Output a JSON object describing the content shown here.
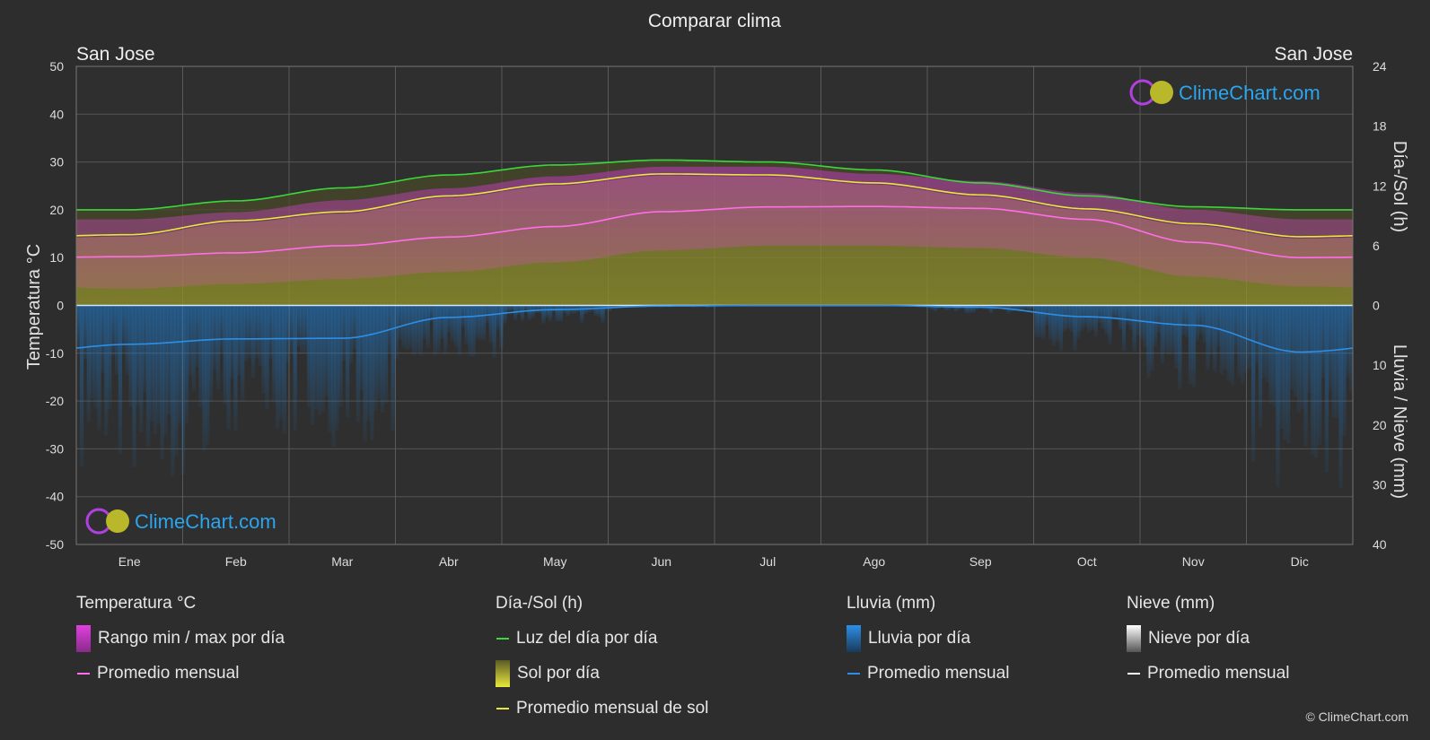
{
  "title": "Comparar clima",
  "location_left": "San Jose",
  "location_right": "San Jose",
  "watermark": "ClimeChart.com",
  "copyright": "© ClimeChart.com",
  "colors": {
    "background": "#2d2d2d",
    "temp_range": "#e040e0",
    "temp_avg": "#ff6ee8",
    "daylight": "#3ad83a",
    "sunshine_fill": "#9d9d28",
    "sunshine_avg": "#e8e83a",
    "rain": "#1e78c8",
    "rain_avg": "#2b8fe8",
    "snow": "#e0e0e0",
    "snow_avg": "#ffffff",
    "brand": "#2aa5ee"
  },
  "chart_data": {
    "type": "line",
    "categories": [
      "Ene",
      "Feb",
      "Mar",
      "Abr",
      "May",
      "Jun",
      "Jul",
      "Ago",
      "Sep",
      "Oct",
      "Nov",
      "Dic"
    ],
    "axes": {
      "left": {
        "label": "Temperatura °C",
        "range": [
          -50,
          50
        ],
        "ticks": [
          50,
          40,
          30,
          20,
          10,
          0,
          -10,
          -20,
          -30,
          -40,
          -50
        ]
      },
      "right_top": {
        "label": "Día-/Sol (h)",
        "range": [
          0,
          24
        ],
        "ticks": [
          24,
          18,
          12,
          6,
          0
        ]
      },
      "right_bottom": {
        "label": "Lluvia / Nieve (mm)",
        "range": [
          0,
          40
        ],
        "ticks": [
          10,
          20,
          30,
          40
        ]
      }
    },
    "grid": true,
    "series": [
      {
        "name": "Luz del día por día",
        "axis": "right_top",
        "values": [
          9.6,
          10.5,
          11.8,
          13.1,
          14.1,
          14.6,
          14.4,
          13.6,
          12.3,
          11.0,
          9.9,
          9.6
        ]
      },
      {
        "name": "Promedio mensual de sol",
        "axis": "right_top",
        "values": [
          7.1,
          8.5,
          9.4,
          11.0,
          12.2,
          13.2,
          13.1,
          12.3,
          11.1,
          9.7,
          8.2,
          6.9
        ]
      },
      {
        "name": "Promedio mensual",
        "metric": "temperature",
        "axis": "left",
        "values": [
          10.2,
          11.0,
          12.5,
          14.3,
          16.5,
          19.6,
          20.6,
          20.7,
          20.3,
          18.0,
          13.2,
          10.0
        ]
      },
      {
        "name": "Rango min / max por día",
        "metric": "temperature_max",
        "axis": "left",
        "values": [
          18.0,
          19.5,
          22.0,
          24.5,
          27.0,
          29.0,
          29.0,
          27.5,
          26.0,
          23.5,
          20.0,
          18.0
        ]
      },
      {
        "name": "Rango min / max por día",
        "metric": "temperature_min",
        "axis": "left",
        "values": [
          3.5,
          4.5,
          5.5,
          7.0,
          9.0,
          11.5,
          12.5,
          12.5,
          12.0,
          10.0,
          6.0,
          4.0
        ]
      },
      {
        "name": "Promedio mensual",
        "metric": "rain",
        "axis": "right_bottom",
        "values": [
          6.5,
          5.6,
          5.5,
          2.0,
          0.7,
          0.1,
          0.0,
          0.0,
          0.3,
          1.9,
          3.3,
          7.8
        ]
      },
      {
        "name": "Promedio mensual",
        "metric": "snow",
        "axis": "right_bottom",
        "values": [
          0,
          0,
          0,
          0,
          0,
          0,
          0,
          0,
          0,
          0,
          0,
          0
        ]
      }
    ]
  },
  "legend": {
    "temperature": {
      "title": "Temperatura °C",
      "items": [
        "Rango min / max por día",
        "Promedio mensual"
      ]
    },
    "sun": {
      "title": "Día-/Sol (h)",
      "items": [
        "Luz del día por día",
        "Sol por día",
        "Promedio mensual de sol"
      ]
    },
    "rain": {
      "title": "Lluvia (mm)",
      "items": [
        "Lluvia por día",
        "Promedio mensual"
      ]
    },
    "snow": {
      "title": "Nieve (mm)",
      "items": [
        "Nieve por día",
        "Promedio mensual"
      ]
    }
  }
}
